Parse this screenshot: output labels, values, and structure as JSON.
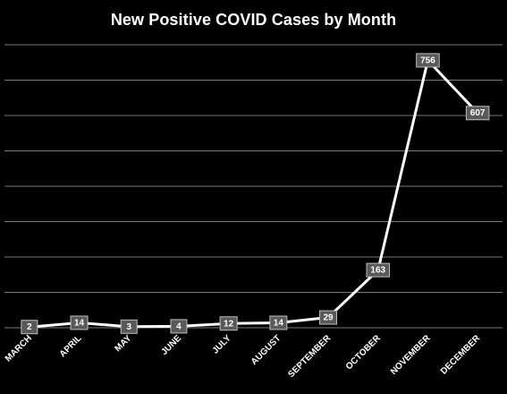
{
  "chart_data": {
    "type": "line",
    "title": "New Positive COVID Cases by Month",
    "xlabel": "",
    "ylabel": "",
    "categories": [
      "MARCH",
      "APRIL",
      "MAY",
      "JUNE",
      "JULY",
      "AUGUST",
      "SEPTEMBER",
      "OCTOBER",
      "NOVEMBER",
      "DECEMBER"
    ],
    "values": [
      2,
      14,
      3,
      4,
      12,
      14,
      29,
      163,
      756,
      607
    ],
    "ylim": [
      0,
      800
    ],
    "y_grid_step": 100,
    "grid": true,
    "data_labels": true,
    "legend": "none",
    "colors": {
      "background": "#000000",
      "line": "#ffffff",
      "gridline": "#7a7a7a",
      "label_box": "#595959",
      "text": "#ffffff"
    }
  }
}
